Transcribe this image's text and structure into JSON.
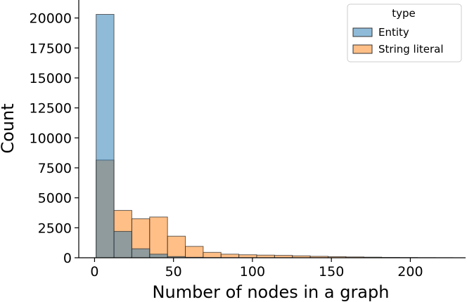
{
  "chart_data": {
    "type": "bar",
    "subtype": "overlaid-histogram",
    "xlabel": "Number of nodes in a graph",
    "ylabel": "Count",
    "xlim": [
      -10,
      235
    ],
    "ylim": [
      0,
      21500
    ],
    "xticks": [
      0,
      50,
      100,
      150,
      200
    ],
    "yticks": [
      0,
      2500,
      5000,
      7500,
      10000,
      12500,
      15000,
      17500,
      20000
    ],
    "bin_edges": [
      1,
      12.3,
      23.6,
      34.9,
      46.2,
      57.5,
      68.8,
      80.1,
      91.4,
      102.7,
      114.0,
      125.3,
      136.6,
      147.9,
      159.2,
      170.5,
      181.8,
      193.1,
      204.4,
      215.7,
      227
    ],
    "legend": {
      "title": "type",
      "placement": "top-right"
    },
    "grid": false,
    "series": [
      {
        "name": "Entity",
        "color": "#1f77b4",
        "values": [
          20300,
          2200,
          750,
          300,
          100,
          40,
          15,
          8,
          5,
          3,
          2,
          1,
          1,
          0,
          0,
          0,
          0,
          0,
          0,
          0
        ]
      },
      {
        "name": "String literal",
        "color": "#ff7f0e",
        "values": [
          8150,
          3950,
          3250,
          3400,
          1800,
          950,
          450,
          300,
          250,
          220,
          200,
          160,
          120,
          90,
          70,
          50,
          30,
          20,
          10,
          5
        ]
      }
    ]
  }
}
